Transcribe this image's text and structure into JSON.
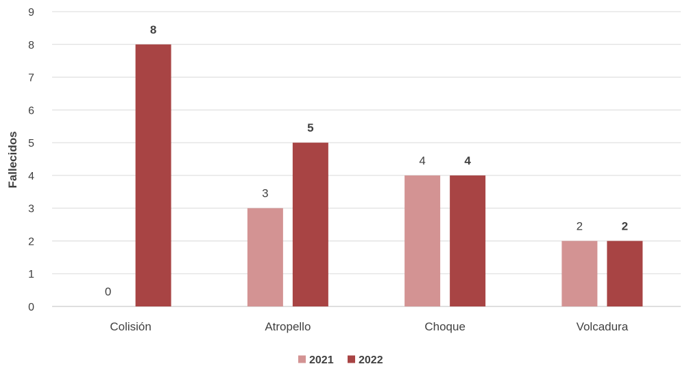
{
  "chart_data": {
    "type": "bar",
    "categories": [
      "Colisión",
      "Atropello",
      "Choque",
      "Volcadura"
    ],
    "series": [
      {
        "name": "2021",
        "values": [
          0,
          3,
          4,
          2
        ],
        "color": "#D39393",
        "label_weight": "normal"
      },
      {
        "name": "2022",
        "values": [
          8,
          5,
          4,
          2
        ],
        "color": "#A84444",
        "label_weight": "bold"
      }
    ],
    "ylabel": "Fallecidos",
    "xlabel": "",
    "ylim": [
      0,
      9
    ],
    "yticks": [
      0,
      1,
      2,
      3,
      4,
      5,
      6,
      7,
      8,
      9
    ],
    "grid": true,
    "gridColor": "#D9D9D9",
    "legend": "bottom"
  }
}
